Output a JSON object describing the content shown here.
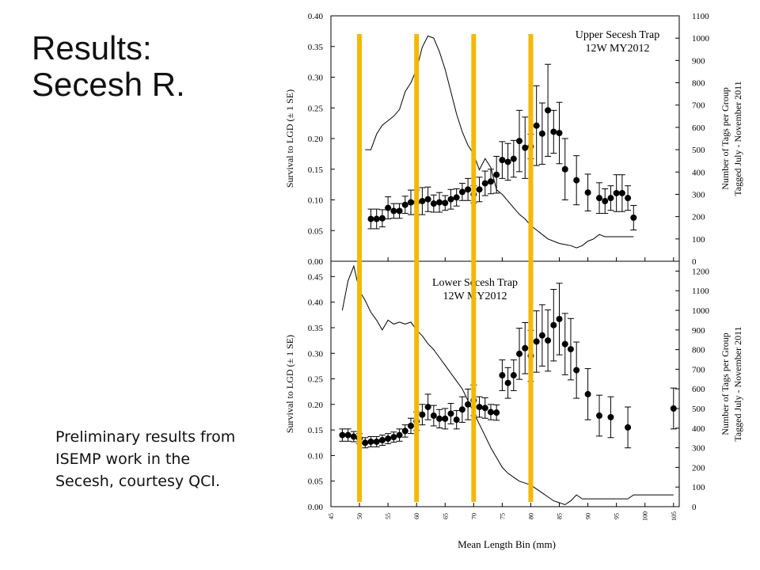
{
  "slide": {
    "title_line1": "Results:",
    "title_line2": "Secesh R.",
    "caption_lines": [
      "Preliminary results from",
      "ISEMP work in the",
      "Secesh, courtesy QCI."
    ]
  },
  "colors": {
    "highlight_bars": "#f5b800",
    "marks": "#000000"
  },
  "chart_data": [
    {
      "type": "scatter",
      "title": "Upper Secesh Trap",
      "subtitle": "12W MY2012",
      "xlabel": "Mean Length Bin (mm)",
      "ylabel": "Survival to LGD (± 1 SE)",
      "y2label_line1": "Number of Tags per Group",
      "y2label_line2": "Tagged July - November 2011",
      "xlim": [
        45,
        106
      ],
      "ylim": [
        0,
        0.4
      ],
      "y2lim": [
        0,
        1100
      ],
      "yticks": [
        "0.00",
        "0.05",
        "0.10",
        "0.15",
        "0.20",
        "0.25",
        "0.30",
        "0.35",
        "0.40"
      ],
      "y2ticks": [
        "0",
        "100",
        "200",
        "300",
        "400",
        "500",
        "600",
        "700",
        "800",
        "900",
        "1000",
        "1100"
      ],
      "survival": {
        "x": [
          52,
          53,
          54,
          55,
          56,
          57,
          58,
          59,
          60,
          61,
          62,
          63,
          64,
          65,
          66,
          67,
          68,
          69,
          70,
          71,
          72,
          73,
          74,
          75,
          76,
          77,
          78,
          79,
          80,
          81,
          82,
          83,
          84,
          85,
          86,
          88,
          90,
          92,
          93,
          94,
          95,
          96,
          97,
          98
        ],
        "y": [
          0.069,
          0.069,
          0.07,
          0.087,
          0.082,
          0.082,
          0.092,
          0.096,
          0.096,
          0.098,
          0.101,
          0.094,
          0.096,
          0.095,
          0.101,
          0.104,
          0.113,
          0.117,
          0.109,
          0.117,
          0.127,
          0.13,
          0.141,
          0.165,
          0.162,
          0.167,
          0.196,
          0.185,
          0.187,
          0.221,
          0.208,
          0.246,
          0.211,
          0.209,
          0.15,
          0.132,
          0.112,
          0.103,
          0.098,
          0.103,
          0.111,
          0.111,
          0.103,
          0.071
        ],
        "se": [
          0.016,
          0.016,
          0.014,
          0.018,
          0.012,
          0.012,
          0.014,
          0.02,
          0.02,
          0.022,
          0.02,
          0.014,
          0.016,
          0.012,
          0.016,
          0.014,
          0.014,
          0.018,
          0.014,
          0.02,
          0.02,
          0.02,
          0.03,
          0.03,
          0.03,
          0.03,
          0.05,
          0.05,
          0.02,
          0.065,
          0.05,
          0.075,
          0.035,
          0.05,
          0.05,
          0.04,
          0.03,
          0.025,
          0.02,
          0.02,
          0.03,
          0.03,
          0.02,
          0.02
        ]
      },
      "tags": {
        "x": [
          51,
          52,
          53,
          54,
          55,
          56,
          57,
          58,
          59,
          60,
          61,
          62,
          63,
          64,
          65,
          66,
          67,
          68,
          69,
          70,
          71,
          72,
          73,
          74,
          75,
          76,
          77,
          78,
          79,
          80,
          81,
          82,
          83,
          84,
          85,
          86,
          87,
          88,
          89,
          90,
          91,
          92,
          93,
          94,
          95,
          96,
          97,
          98
        ],
        "y": [
          500,
          500,
          570,
          610,
          630,
          650,
          680,
          760,
          800,
          860,
          960,
          1010,
          1000,
          940,
          860,
          760,
          660,
          580,
          520,
          480,
          410,
          460,
          420,
          320,
          300,
          270,
          240,
          210,
          190,
          160,
          140,
          120,
          100,
          90,
          80,
          75,
          70,
          60,
          70,
          90,
          100,
          120,
          110,
          110,
          110,
          110,
          110,
          110
        ]
      }
    },
    {
      "type": "scatter",
      "title": "Lower Secesh Trap",
      "subtitle": "12W MY2012",
      "xlabel": "Mean Length Bin (mm)",
      "ylabel": "Survival to LGD (± 1 SE)",
      "y2label_line1": "Number of Tags per Group",
      "y2label_line2": "Tagged July - November 2011",
      "xlim": [
        45,
        106
      ],
      "ylim": [
        0,
        0.48
      ],
      "y2lim": [
        0,
        1250
      ],
      "xticks": [
        "45",
        "50",
        "55",
        "60",
        "65",
        "70",
        "75",
        "80",
        "85",
        "90",
        "95",
        "100",
        "105"
      ],
      "yticks": [
        "0.00",
        "0.05",
        "0.10",
        "0.15",
        "0.20",
        "0.25",
        "0.30",
        "0.35",
        "0.40",
        "0.45"
      ],
      "y2ticks": [
        "0",
        "100",
        "200",
        "300",
        "400",
        "500",
        "600",
        "700",
        "800",
        "900",
        "1000",
        "1100",
        "1200"
      ],
      "survival": {
        "x": [
          47,
          48,
          49,
          50,
          51,
          52,
          53,
          54,
          55,
          56,
          57,
          58,
          59,
          60,
          61,
          62,
          63,
          64,
          65,
          66,
          67,
          68,
          69,
          70,
          71,
          72,
          73,
          74,
          75,
          76,
          77,
          78,
          79,
          80,
          81,
          82,
          83,
          84,
          85,
          86,
          87,
          88,
          90,
          92,
          94,
          97,
          105
        ],
        "y": [
          0.14,
          0.14,
          0.137,
          0.133,
          0.125,
          0.127,
          0.127,
          0.13,
          0.133,
          0.136,
          0.14,
          0.148,
          0.158,
          0.167,
          0.18,
          0.195,
          0.178,
          0.172,
          0.172,
          0.182,
          0.17,
          0.19,
          0.2,
          0.208,
          0.195,
          0.193,
          0.185,
          0.184,
          0.257,
          0.242,
          0.257,
          0.299,
          0.31,
          0.295,
          0.323,
          0.335,
          0.325,
          0.355,
          0.367,
          0.318,
          0.308,
          0.267,
          0.22,
          0.178,
          0.175,
          0.155,
          0.192
        ],
        "se": [
          0.012,
          0.012,
          0.01,
          0.01,
          0.01,
          0.01,
          0.01,
          0.01,
          0.01,
          0.01,
          0.012,
          0.012,
          0.015,
          0.018,
          0.02,
          0.025,
          0.02,
          0.018,
          0.02,
          0.02,
          0.018,
          0.025,
          0.03,
          0.03,
          0.02,
          0.02,
          0.015,
          0.015,
          0.03,
          0.03,
          0.03,
          0.05,
          0.05,
          0.05,
          0.06,
          0.06,
          0.06,
          0.07,
          0.07,
          0.06,
          0.06,
          0.055,
          0.05,
          0.04,
          0.04,
          0.04,
          0.04
        ]
      },
      "tags": {
        "x": [
          47,
          48,
          49,
          50,
          51,
          52,
          53,
          54,
          55,
          56,
          57,
          58,
          59,
          60,
          61,
          62,
          63,
          64,
          65,
          66,
          67,
          68,
          69,
          70,
          71,
          72,
          73,
          74,
          75,
          76,
          77,
          78,
          79,
          80,
          81,
          82,
          83,
          84,
          85,
          86,
          87,
          88,
          89,
          90,
          92,
          95,
          97,
          98,
          100,
          103,
          105
        ],
        "y": [
          1000,
          1150,
          1225,
          1100,
          1050,
          990,
          950,
          900,
          950,
          930,
          940,
          930,
          940,
          900,
          870,
          830,
          800,
          760,
          720,
          680,
          640,
          600,
          540,
          480,
          420,
          360,
          300,
          250,
          200,
          170,
          150,
          130,
          120,
          110,
          90,
          70,
          50,
          30,
          20,
          10,
          30,
          60,
          40,
          40,
          40,
          40,
          40,
          60,
          60,
          60,
          60
        ]
      }
    }
  ]
}
